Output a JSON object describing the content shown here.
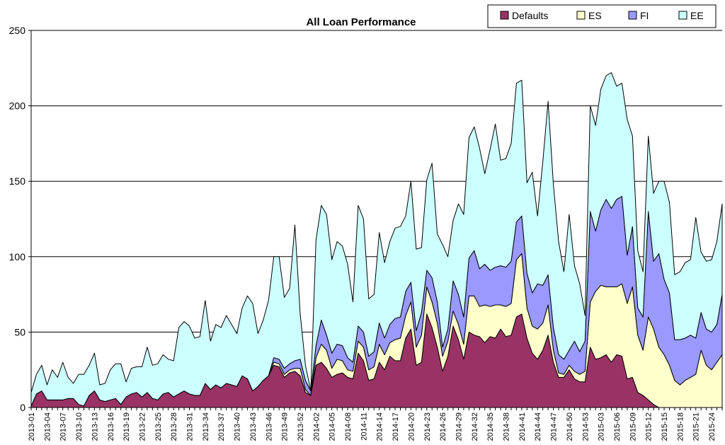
{
  "chart_data": {
    "type": "area",
    "stacked": true,
    "title": "All Loan Performance",
    "xlabel": "",
    "ylabel": "",
    "ylim": [
      0,
      250
    ],
    "yticks": [
      0,
      50,
      100,
      150,
      200,
      250
    ],
    "grid": "horizontal",
    "legend_position": "top-right",
    "x_tick_labels": [
      "2013-01",
      "2013-04",
      "2013-07",
      "2013-10",
      "2013-13",
      "2013-16",
      "2013-19",
      "2013-22",
      "2013-25",
      "2013-28",
      "2013-31",
      "2013-34",
      "2013-37",
      "2013-40",
      "2013-43",
      "2013-46",
      "2013-49",
      "2013-52",
      "2014-02",
      "2014-05",
      "2014-08",
      "2014-11",
      "2014-14",
      "2014-17",
      "2014-20",
      "2014-23",
      "2014-26",
      "2014-29",
      "2014-32",
      "2014-35",
      "2014-38",
      "2014-41",
      "2014-44",
      "2014-47",
      "2014-50",
      "2014-53",
      "2015-03",
      "2015-06",
      "2015-09",
      "2015-12",
      "2015-15",
      "2015-18",
      "2015-21",
      "2015-24"
    ],
    "x_tick_step": 3,
    "series": [
      {
        "name": "Defaults",
        "color": "#993366",
        "values": [
          1,
          9,
          11,
          5,
          5,
          5,
          5,
          6,
          6,
          2,
          1,
          8,
          11,
          5,
          4,
          5,
          6,
          2,
          7,
          9,
          10,
          7,
          10,
          6,
          5,
          9,
          10,
          7,
          9,
          11,
          9,
          8,
          8,
          16,
          12,
          15,
          13,
          16,
          15,
          14,
          21,
          19,
          11,
          14,
          18,
          21,
          28,
          27,
          20,
          23,
          24,
          21,
          10,
          8,
          28,
          30,
          26,
          20,
          22,
          23,
          20,
          19,
          36,
          31,
          18,
          19,
          30,
          25,
          34,
          31,
          31,
          46,
          52,
          28,
          30,
          62,
          53,
          40,
          24,
          34,
          54,
          45,
          32,
          50,
          48,
          47,
          43,
          47,
          46,
          52,
          47,
          48,
          60,
          62,
          46,
          36,
          32,
          38,
          48,
          30,
          20,
          20,
          25,
          19,
          17,
          17,
          40,
          32,
          33,
          35,
          30,
          35,
          34,
          19,
          20,
          10,
          8,
          5,
          2,
          0,
          0,
          0,
          0,
          0,
          0,
          0,
          0,
          0,
          0,
          0,
          0,
          0
        ]
      },
      {
        "name": "ES",
        "color": "#ffffcc",
        "values": [
          0,
          0,
          0,
          0,
          0,
          0,
          0,
          0,
          0,
          0,
          0,
          0,
          0,
          0,
          0,
          0,
          0,
          0,
          0,
          0,
          0,
          0,
          0,
          0,
          0,
          0,
          0,
          0,
          0,
          0,
          0,
          0,
          0,
          0,
          0,
          0,
          0,
          0,
          0,
          0,
          0,
          0,
          0,
          0,
          0,
          0,
          2,
          2,
          2,
          2,
          2,
          5,
          2,
          0,
          5,
          12,
          12,
          6,
          10,
          8,
          5,
          5,
          8,
          9,
          7,
          8,
          12,
          10,
          9,
          14,
          15,
          15,
          18,
          12,
          18,
          18,
          17,
          16,
          10,
          10,
          10,
          10,
          10,
          24,
          26,
          20,
          25,
          20,
          22,
          16,
          20,
          21,
          38,
          40,
          20,
          18,
          20,
          18,
          20,
          8,
          3,
          2,
          3,
          5,
          5,
          7,
          30,
          45,
          48,
          45,
          50,
          45,
          48,
          50,
          60,
          38,
          30,
          55,
          50,
          40,
          35,
          28,
          18,
          15,
          18,
          20,
          22,
          38,
          28,
          25,
          30,
          35
        ]
      },
      {
        "name": "FI",
        "color": "#9999ff",
        "values": [
          0,
          0,
          0,
          0,
          0,
          0,
          0,
          0,
          0,
          0,
          0,
          0,
          0,
          0,
          0,
          0,
          0,
          0,
          0,
          0,
          0,
          0,
          0,
          0,
          0,
          0,
          0,
          0,
          0,
          0,
          0,
          0,
          0,
          0,
          0,
          0,
          0,
          0,
          0,
          0,
          0,
          0,
          0,
          0,
          0,
          0,
          3,
          3,
          4,
          4,
          5,
          6,
          6,
          3,
          8,
          16,
          10,
          10,
          10,
          10,
          8,
          6,
          10,
          10,
          9,
          10,
          14,
          11,
          12,
          14,
          14,
          16,
          13,
          11,
          15,
          11,
          16,
          14,
          6,
          8,
          20,
          20,
          18,
          25,
          30,
          25,
          27,
          24,
          25,
          26,
          26,
          28,
          25,
          25,
          23,
          22,
          30,
          25,
          20,
          15,
          12,
          10,
          10,
          20,
          15,
          20,
          60,
          40,
          50,
          58,
          52,
          58,
          58,
          32,
          40,
          18,
          22,
          70,
          45,
          62,
          50,
          48,
          27,
          30,
          28,
          28,
          24,
          25,
          24,
          25,
          25,
          40
        ]
      },
      {
        "name": "EE",
        "color": "#ccffff",
        "values": [
          9,
          13,
          17,
          10,
          20,
          15,
          25,
          14,
          10,
          20,
          21,
          20,
          25,
          10,
          12,
          20,
          23,
          27,
          10,
          17,
          17,
          20,
          30,
          22,
          24,
          26,
          22,
          24,
          44,
          46,
          45,
          38,
          39,
          55,
          32,
          40,
          40,
          45,
          40,
          35,
          45,
          55,
          58,
          35,
          40,
          50,
          67,
          68,
          47,
          50,
          90,
          30,
          10,
          0,
          70,
          76,
          80,
          62,
          68,
          66,
          62,
          40,
          80,
          75,
          38,
          38,
          60,
          50,
          55,
          60,
          60,
          50,
          67,
          54,
          43,
          60,
          76,
          45,
          68,
          48,
          40,
          60,
          68,
          80,
          82,
          80,
          60,
          80,
          95,
          70,
          72,
          78,
          92,
          90,
          60,
          80,
          45,
          82,
          115,
          95,
          75,
          58,
          90,
          50,
          45,
          17,
          70,
          70,
          80,
          82,
          90,
          75,
          75,
          90,
          60,
          38,
          30,
          50,
          45,
          48,
          65,
          60,
          43,
          45,
          50,
          50,
          80,
          40,
          45,
          48,
          55,
          60
        ]
      }
    ]
  }
}
